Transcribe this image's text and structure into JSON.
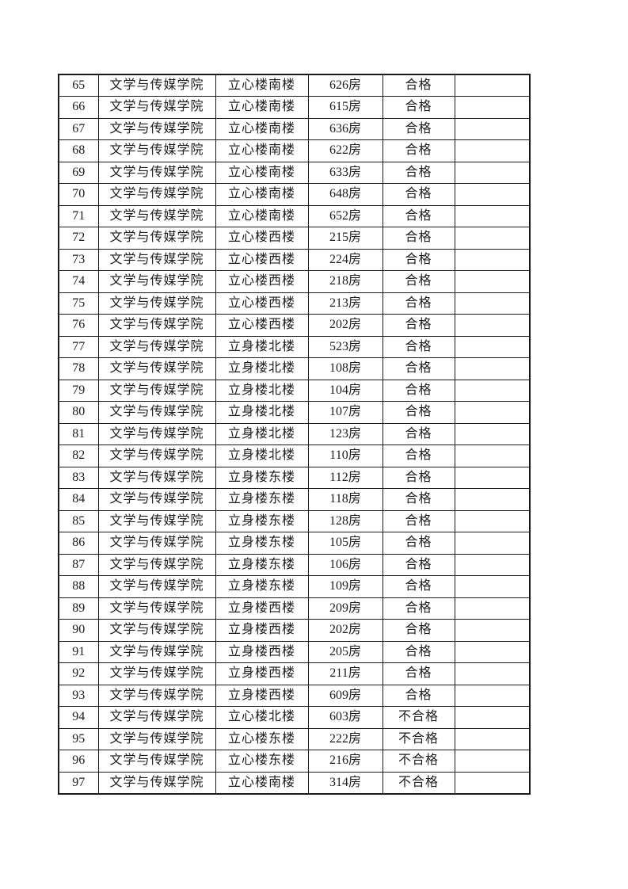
{
  "page": {
    "background_color": "#ffffff",
    "text_color": "#1c1c1c",
    "border_color": "#1a1a1a"
  },
  "table": {
    "field_order": [
      "index",
      "college",
      "building",
      "room",
      "result",
      "note"
    ],
    "result_values": {
      "pass": "合格",
      "fail": "不合格"
    },
    "rows": [
      {
        "index": "65",
        "college": "文学与传媒学院",
        "building": "立心楼南楼",
        "room": "626房",
        "result": "合格",
        "note": ""
      },
      {
        "index": "66",
        "college": "文学与传媒学院",
        "building": "立心楼南楼",
        "room": "615房",
        "result": "合格",
        "note": ""
      },
      {
        "index": "67",
        "college": "文学与传媒学院",
        "building": "立心楼南楼",
        "room": "636房",
        "result": "合格",
        "note": ""
      },
      {
        "index": "68",
        "college": "文学与传媒学院",
        "building": "立心楼南楼",
        "room": "622房",
        "result": "合格",
        "note": ""
      },
      {
        "index": "69",
        "college": "文学与传媒学院",
        "building": "立心楼南楼",
        "room": "633房",
        "result": "合格",
        "note": ""
      },
      {
        "index": "70",
        "college": "文学与传媒学院",
        "building": "立心楼南楼",
        "room": "648房",
        "result": "合格",
        "note": ""
      },
      {
        "index": "71",
        "college": "文学与传媒学院",
        "building": "立心楼南楼",
        "room": "652房",
        "result": "合格",
        "note": ""
      },
      {
        "index": "72",
        "college": "文学与传媒学院",
        "building": "立心楼西楼",
        "room": "215房",
        "result": "合格",
        "note": ""
      },
      {
        "index": "73",
        "college": "文学与传媒学院",
        "building": "立心楼西楼",
        "room": "224房",
        "result": "合格",
        "note": ""
      },
      {
        "index": "74",
        "college": "文学与传媒学院",
        "building": "立心楼西楼",
        "room": "218房",
        "result": "合格",
        "note": ""
      },
      {
        "index": "75",
        "college": "文学与传媒学院",
        "building": "立心楼西楼",
        "room": "213房",
        "result": "合格",
        "note": ""
      },
      {
        "index": "76",
        "college": "文学与传媒学院",
        "building": "立心楼西楼",
        "room": "202房",
        "result": "合格",
        "note": ""
      },
      {
        "index": "77",
        "college": "文学与传媒学院",
        "building": "立身楼北楼",
        "room": "523房",
        "result": "合格",
        "note": ""
      },
      {
        "index": "78",
        "college": "文学与传媒学院",
        "building": "立身楼北楼",
        "room": "108房",
        "result": "合格",
        "note": ""
      },
      {
        "index": "79",
        "college": "文学与传媒学院",
        "building": "立身楼北楼",
        "room": "104房",
        "result": "合格",
        "note": ""
      },
      {
        "index": "80",
        "college": "文学与传媒学院",
        "building": "立身楼北楼",
        "room": "107房",
        "result": "合格",
        "note": ""
      },
      {
        "index": "81",
        "college": "文学与传媒学院",
        "building": "立身楼北楼",
        "room": "123房",
        "result": "合格",
        "note": ""
      },
      {
        "index": "82",
        "college": "文学与传媒学院",
        "building": "立身楼北楼",
        "room": "110房",
        "result": "合格",
        "note": ""
      },
      {
        "index": "83",
        "college": "文学与传媒学院",
        "building": "立身楼东楼",
        "room": "112房",
        "result": "合格",
        "note": ""
      },
      {
        "index": "84",
        "college": "文学与传媒学院",
        "building": "立身楼东楼",
        "room": "118房",
        "result": "合格",
        "note": ""
      },
      {
        "index": "85",
        "college": "文学与传媒学院",
        "building": "立身楼东楼",
        "room": "128房",
        "result": "合格",
        "note": ""
      },
      {
        "index": "86",
        "college": "文学与传媒学院",
        "building": "立身楼东楼",
        "room": "105房",
        "result": "合格",
        "note": ""
      },
      {
        "index": "87",
        "college": "文学与传媒学院",
        "building": "立身楼东楼",
        "room": "106房",
        "result": "合格",
        "note": ""
      },
      {
        "index": "88",
        "college": "文学与传媒学院",
        "building": "立身楼东楼",
        "room": "109房",
        "result": "合格",
        "note": ""
      },
      {
        "index": "89",
        "college": "文学与传媒学院",
        "building": "立身楼西楼",
        "room": "209房",
        "result": "合格",
        "note": ""
      },
      {
        "index": "90",
        "college": "文学与传媒学院",
        "building": "立身楼西楼",
        "room": "202房",
        "result": "合格",
        "note": ""
      },
      {
        "index": "91",
        "college": "文学与传媒学院",
        "building": "立身楼西楼",
        "room": "205房",
        "result": "合格",
        "note": ""
      },
      {
        "index": "92",
        "college": "文学与传媒学院",
        "building": "立身楼西楼",
        "room": "211房",
        "result": "合格",
        "note": ""
      },
      {
        "index": "93",
        "college": "文学与传媒学院",
        "building": "立身楼西楼",
        "room": "609房",
        "result": "合格",
        "note": ""
      },
      {
        "index": "94",
        "college": "文学与传媒学院",
        "building": "立心楼北楼",
        "room": "603房",
        "result": "不合格",
        "note": ""
      },
      {
        "index": "95",
        "college": "文学与传媒学院",
        "building": "立心楼东楼",
        "room": "222房",
        "result": "不合格",
        "note": ""
      },
      {
        "index": "96",
        "college": "文学与传媒学院",
        "building": "立心楼东楼",
        "room": "216房",
        "result": "不合格",
        "note": ""
      },
      {
        "index": "97",
        "college": "文学与传媒学院",
        "building": "立心楼南楼",
        "room": "314房",
        "result": "不合格",
        "note": ""
      }
    ]
  }
}
